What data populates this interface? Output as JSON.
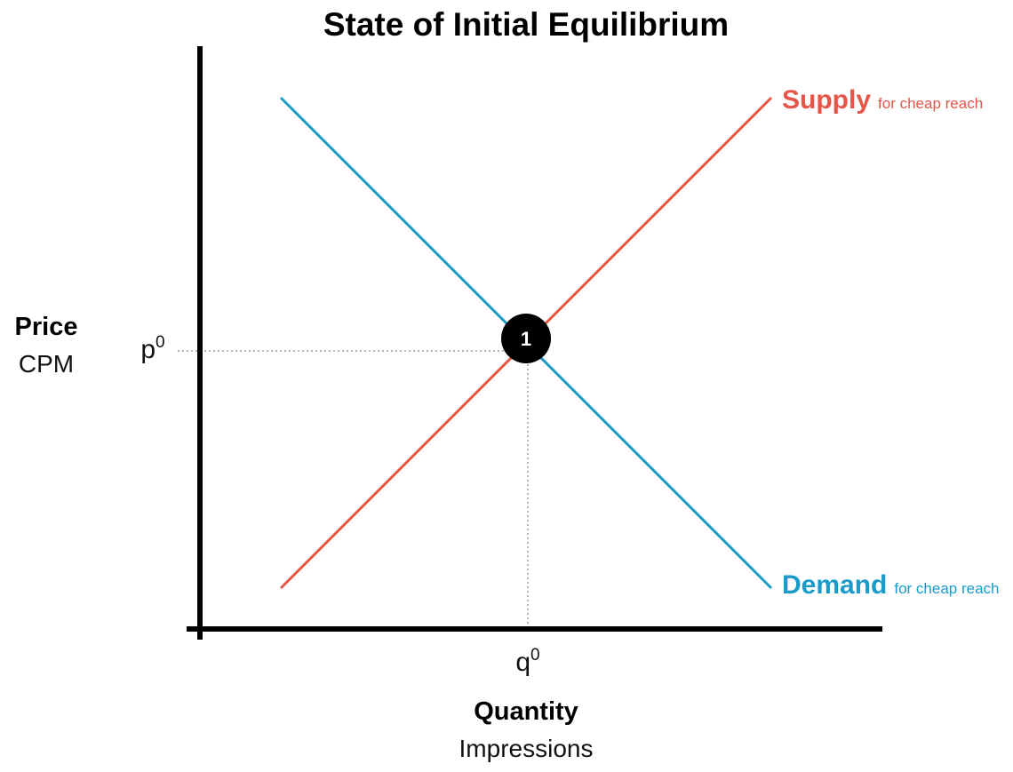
{
  "title": "State of Initial Equilibrium",
  "y_axis": {
    "title": "Price",
    "subtitle": "CPM",
    "tick": {
      "base": "p",
      "sup": "0"
    }
  },
  "x_axis": {
    "title": "Quantity",
    "subtitle": "Impressions",
    "tick": {
      "base": "q",
      "sup": "0"
    }
  },
  "supply": {
    "name": "Supply",
    "qualifier": "for cheap reach",
    "color": "#e5554a"
  },
  "demand": {
    "name": "Demand",
    "qualifier": "for cheap reach",
    "color": "#1a9bc9"
  },
  "equilibrium": {
    "label": "1",
    "color": "#000000"
  },
  "guide_color": "#9a9a9a",
  "axis_color": "#000000"
}
